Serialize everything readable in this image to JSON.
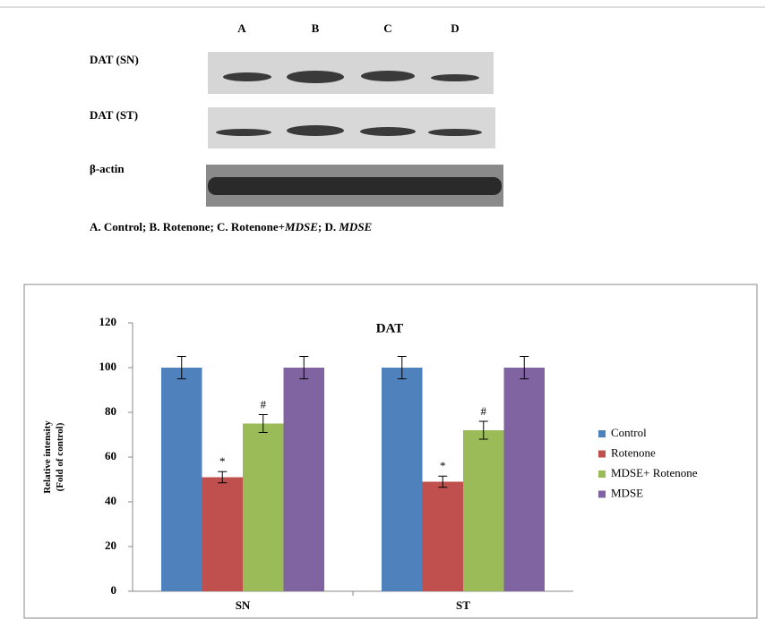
{
  "blot": {
    "lanes": [
      "A",
      "B",
      "C",
      "D"
    ],
    "rows": [
      "DAT (SN)",
      "DAT (ST)",
      "β-actin"
    ],
    "caption": [
      "A. Control; B. Rotenone; C. Rotenone+",
      "MDSE",
      "; D. ",
      "MDSE"
    ]
  },
  "chart_data": {
    "type": "bar",
    "title": "DAT",
    "y_label": [
      "Relative intensity",
      "(Fold of control)"
    ],
    "categories": [
      "SN",
      "ST"
    ],
    "series": [
      {
        "name": "Control",
        "color": "#4f81bd",
        "values": [
          100,
          100
        ],
        "errors": [
          5,
          5
        ]
      },
      {
        "name": "Rotenone",
        "color": "#c0504d",
        "values": [
          51,
          49
        ],
        "errors": [
          2.5,
          2.5
        ],
        "labels": [
          "*",
          "*"
        ]
      },
      {
        "name": "MDSE+ Rotenone",
        "color": "#9bbb59",
        "values": [
          75,
          72
        ],
        "errors": [
          4,
          4
        ],
        "labels": [
          "#",
          "#"
        ]
      },
      {
        "name": "MDSE",
        "color": "#8064a2",
        "values": [
          100,
          100
        ],
        "errors": [
          5,
          5
        ]
      }
    ],
    "ylim": [
      0,
      120
    ],
    "yticks": [
      0,
      20,
      40,
      60,
      80,
      100,
      120
    ],
    "legend": "right"
  }
}
